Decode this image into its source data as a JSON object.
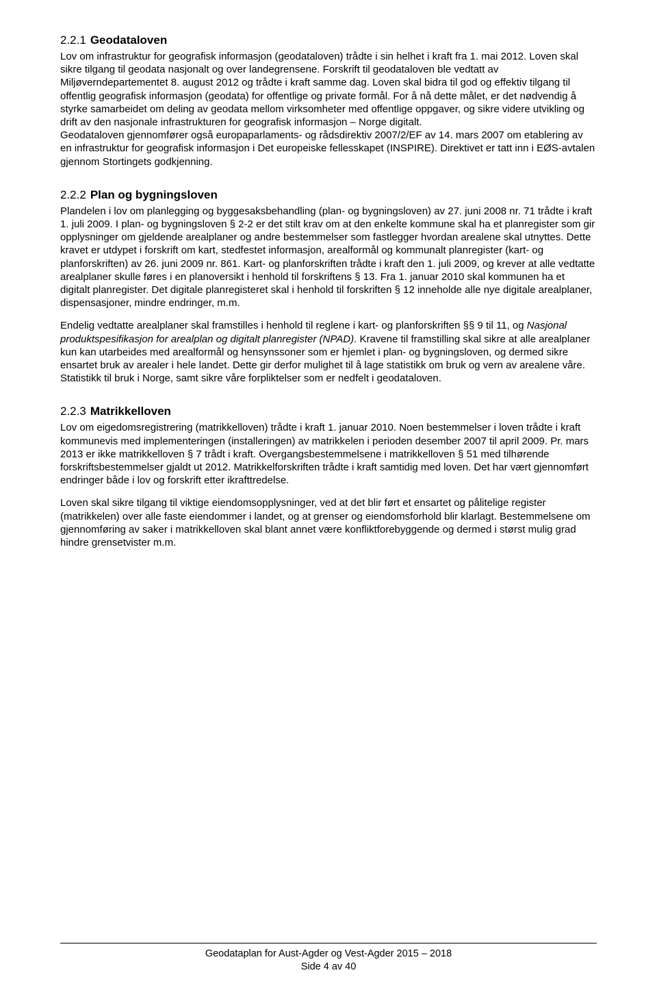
{
  "sections": [
    {
      "num": "2.2.1",
      "title": "Geodataloven",
      "paragraphs": [
        "Lov om infrastruktur for geografisk informasjon (geodataloven) trådte i sin helhet i kraft fra 1. mai 2012. Loven skal sikre tilgang til geodata nasjonalt og over landegrensene. Forskrift til geodataloven ble vedtatt av Miljøverndepartementet 8. august 2012 og trådte i kraft samme dag. Loven skal bidra til god og effektiv tilgang til offentlig geografisk informasjon (geodata) for offentlige og private formål. For å nå dette målet, er det nødvendig å styrke samarbeidet om deling av geodata mellom virksomheter med offentlige oppgaver, og sikre videre utvikling og drift av den nasjonale infrastrukturen for geografisk informasjon – Norge digitalt.",
        "Geodataloven gjennomfører også europaparlaments- og rådsdirektiv 2007/2/EF av 14. mars 2007 om etablering av en infrastruktur for geografisk informasjon i Det europeiske fellesskapet (INSPIRE). Direktivet er tatt inn i EØS-avtalen gjennom Stortingets godkjenning."
      ]
    },
    {
      "num": "2.2.2",
      "title": "Plan og bygningsloven",
      "paragraphs": [
        "Plandelen i lov om planlegging og byggesaksbehandling (plan- og bygningsloven) av 27. juni 2008 nr. 71 trådte i kraft 1. juli 2009. I plan- og bygningsloven § 2-2 er det stilt krav om at den enkelte kommune skal ha et planregister som gir opplysninger om gjeldende arealplaner og andre bestemmelser som fastlegger hvordan arealene skal utnyttes. Dette kravet er utdypet i forskrift om kart, stedfestet informasjon, arealformål og kommunalt planregister (kart- og planforskriften) av 26. juni 2009 nr. 861. Kart- og planforskriften trådte i kraft den 1. juli 2009, og krever at alle vedtatte arealplaner skulle føres i en planoversikt i henhold til forskriftens § 13. Fra 1. januar 2010 skal kommunen ha et digitalt planregister. Det digitale planregisteret skal i henhold til forskriften § 12 inneholde alle nye digitale arealplaner, dispensasjoner, mindre endringer, m.m.",
        "Endelig vedtatte arealplaner skal framstilles i henhold til reglene i kart- og planforskriften §§ 9 til 11, og <i>Nasjonal produktspesifikasjon for arealplan og digitalt planregister (NPAD)</i>. Kravene til framstilling skal sikre at alle arealplaner kun kan utarbeides med arealformål og hensynssoner som er hjemlet i plan- og bygningsloven, og dermed sikre ensartet bruk av arealer i hele landet. Dette gir derfor mulighet til å lage statistikk om bruk og vern av arealene våre. Statistikk til bruk i Norge, samt sikre våre forpliktelser som er nedfelt i geodataloven."
      ]
    },
    {
      "num": "2.2.3",
      "title": "Matrikkelloven",
      "paragraphs": [
        "Lov om eigedomsregistrering (matrikkelloven) trådte i kraft 1. januar 2010. Noen bestemmelser i loven trådte i kraft kommunevis med implementeringen (installeringen) av matrikkelen i perioden desember 2007 til april 2009. Pr. mars 2013 er ikke matrikkelloven § 7 trådt i kraft. Overgangsbestemmelsene i matrikkelloven § 51 med tilhørende forskriftsbestemmelser gjaldt ut 2012. Matrikkelforskriften trådte i kraft samtidig med loven. Det har vært gjennomført endringer både i lov og forskrift etter ikrafttredelse.",
        "Loven skal sikre tilgang til viktige eiendomsopplysninger, ved at det blir ført et ensartet og pålitelige register (matrikkelen) over alle faste eiendommer i landet, og at grenser og eiendomsforhold blir klarlagt. Bestemmelsene om gjennomføring av saker i matrikkelloven skal blant annet være konfliktforebyggende og dermed i størst mulig grad hindre grensetvister m.m."
      ]
    }
  ],
  "footer": {
    "line1": "Geodataplan for Aust-Agder og Vest-Agder 2015 – 2018",
    "line2": "Side 4 av 40"
  }
}
